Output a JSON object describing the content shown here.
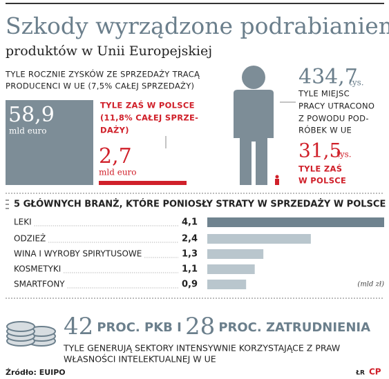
{
  "header": {
    "title": "Szkody wyrządzone podrabianiem",
    "subtitle": "produktów w Unii Europejskiej"
  },
  "profits": {
    "intro": [
      "TYLE ROCZNIE ZYSKÓW ZE SPRZEDAŻY TRACĄ",
      "PRODUCENCI W UE (7,5% CAŁEJ SPRZEDAŻY)"
    ],
    "eu_value": "58,9",
    "eu_unit": "mld euro",
    "poland_note": [
      "TYLE ZAŚ W POLSCE",
      "(11,8% CAŁEJ SPRZE-",
      "DAŻY)"
    ],
    "poland_value": "2,7",
    "poland_unit": "mld euro"
  },
  "jobs": {
    "eu_value": "434,7",
    "eu_unit": "tys.",
    "eu_note": [
      "TYLE MIEJSC",
      "PRACY UTRACONO",
      "Z POWODU POD-",
      "RÓBEK W UE"
    ],
    "poland_value": "31,5",
    "poland_unit": "tys.",
    "poland_note": [
      "TYLE ZAŚ",
      "W POLSCE"
    ]
  },
  "chart_data": {
    "type": "bar",
    "orientation": "horizontal",
    "title": "5 GŁÓWNYCH BRANŻ, KTÓRE PONIOSŁY STRATY W SPRZEDAŻY W POLSCE",
    "categories": [
      "LEKI",
      "ODZIEŻ",
      "WINA I WYROBY SPIRYTUSOWE",
      "KOSMETYKI",
      "SMARTFONY"
    ],
    "values": [
      4.1,
      2.4,
      1.3,
      1.1,
      0.9
    ],
    "value_labels": [
      "4,1",
      "2,4",
      "1,3",
      "1,1",
      "0,9"
    ],
    "colors": [
      "#6f838f",
      "#b9c6cd",
      "#b9c6cd",
      "#b9c6cd",
      "#b9c6cd"
    ],
    "xlim": [
      0,
      4.1
    ],
    "unit": "(mld zł)"
  },
  "footer": {
    "gdp_value": "42",
    "gdp_label": "PROC. PKB I",
    "employment_value": "28",
    "employment_label": "PROC. ZATRUDNIENIA",
    "note": [
      "TYLE GENERUJĄ SEKTORY INTENSYWNIE KORZYSTAJĄCE Z PRAW",
      "WŁASNOŚCI INTELEKTUALNEJ W UE"
    ],
    "source": "Źródło: EUIPO",
    "author": "ŁR",
    "logo": "CP"
  }
}
